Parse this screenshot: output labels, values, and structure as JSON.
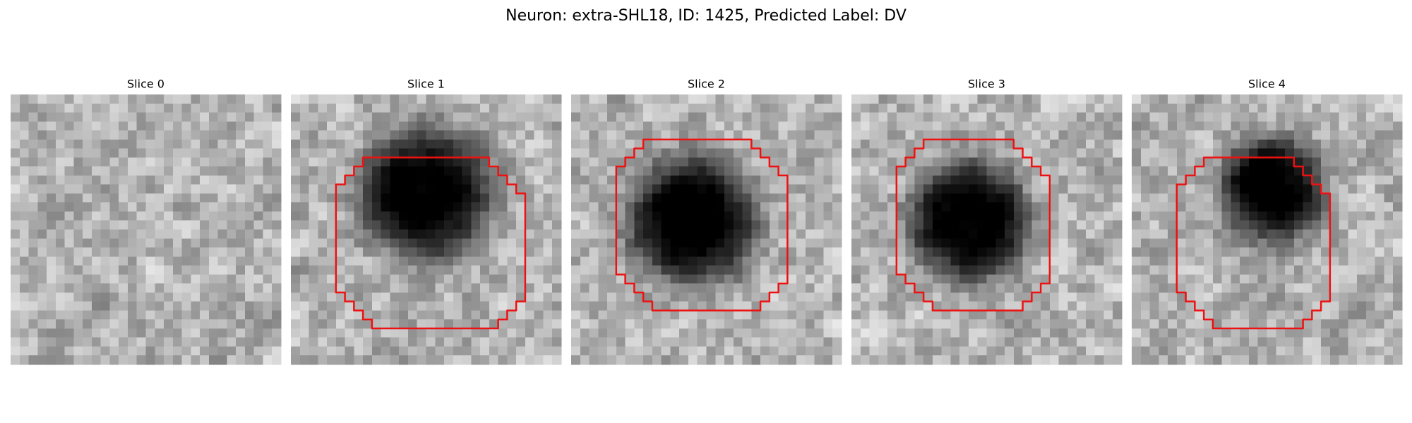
{
  "figure": {
    "title": "Neuron: extra-SHL18, ID: 1425, Predicted Label: DV",
    "panels": [
      {
        "title": "Slice 0"
      },
      {
        "title": "Slice 1"
      },
      {
        "title": "Slice 2"
      },
      {
        "title": "Slice 3"
      },
      {
        "title": "Slice 4"
      }
    ]
  }
}
